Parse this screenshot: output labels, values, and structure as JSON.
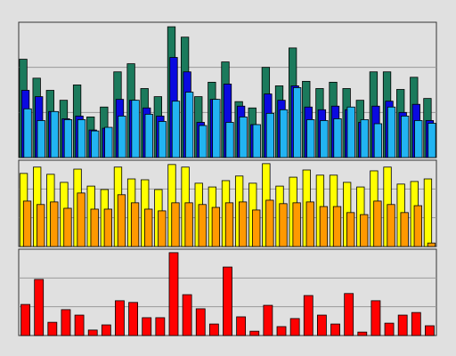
{
  "chart_data": [
    {
      "type": "bar",
      "ylim": [
        0,
        3
      ],
      "yticks": [
        1,
        2
      ],
      "grid": true,
      "series": [
        {
          "color": "#1b7a5c",
          "values": [
            2.18,
            1.76,
            1.49,
            1.27,
            1.61,
            0.9,
            1.12,
            1.9,
            2.08,
            1.53,
            1.35,
            2.9,
            2.67,
            1.35,
            1.67,
            2.12,
            1.24,
            1.1,
            2.0,
            1.59,
            2.43,
            1.69,
            1.53,
            1.67,
            1.53,
            1.27,
            1.9,
            1.9,
            1.51,
            1.78,
            1.31
          ]
        },
        {
          "color": "#0a0ae0",
          "values": [
            1.49,
            1.35,
            1.02,
            0.86,
            0.92,
            0.61,
            0.65,
            1.29,
            1.27,
            1.1,
            0.92,
            2.22,
            1.9,
            0.78,
            1.29,
            1.63,
            1.14,
            0.73,
            1.41,
            1.27,
            1.59,
            1.12,
            1.06,
            1.14,
            1.06,
            0.78,
            1.14,
            1.25,
            1.0,
            1.18,
            0.82
          ]
        },
        {
          "color": "#22b4f2",
          "values": [
            1.08,
            0.82,
            1.02,
            0.84,
            0.84,
            0.59,
            0.67,
            0.92,
            1.27,
            0.96,
            0.8,
            1.25,
            1.45,
            0.71,
            1.29,
            0.78,
            0.9,
            0.73,
            0.98,
            1.06,
            1.55,
            0.84,
            0.82,
            0.86,
            1.12,
            0.84,
            0.75,
            1.12,
            0.92,
            0.82,
            0.76
          ]
        }
      ]
    },
    {
      "type": "bar",
      "ylim": [
        0,
        3
      ],
      "yticks": [
        1,
        2
      ],
      "grid": true,
      "series": [
        {
          "color": "#ffff00",
          "values": [
            2.54,
            2.76,
            2.51,
            2.23,
            2.69,
            2.1,
            1.98,
            2.76,
            2.35,
            2.32,
            1.98,
            2.85,
            2.76,
            2.2,
            2.07,
            2.29,
            2.45,
            2.2,
            2.88,
            2.1,
            2.41,
            2.66,
            2.48,
            2.48,
            2.23,
            2.07,
            2.63,
            2.76,
            2.17,
            2.26,
            2.35
          ]
        },
        {
          "color": "#ff9900",
          "values": [
            1.58,
            1.46,
            1.55,
            1.33,
            1.86,
            1.3,
            1.3,
            1.8,
            1.52,
            1.3,
            1.24,
            1.52,
            1.52,
            1.46,
            1.36,
            1.52,
            1.55,
            1.27,
            1.61,
            1.49,
            1.52,
            1.55,
            1.39,
            1.39,
            1.18,
            1.11,
            1.58,
            1.46,
            1.18,
            1.42,
            0.12
          ]
        }
      ]
    },
    {
      "type": "bar",
      "ylim": [
        0,
        3
      ],
      "yticks": [
        1,
        2
      ],
      "grid": true,
      "series": [
        {
          "color": "#ff0000",
          "values": [
            1.08,
            1.95,
            0.46,
            0.9,
            0.71,
            0.19,
            0.37,
            1.21,
            1.15,
            0.62,
            0.62,
            2.88,
            1.42,
            0.93,
            0.4,
            2.38,
            0.65,
            0.15,
            1.05,
            0.31,
            0.59,
            1.39,
            0.71,
            0.4,
            1.46,
            0.12,
            1.21,
            0.43,
            0.71,
            0.8,
            0.34
          ]
        }
      ]
    }
  ]
}
